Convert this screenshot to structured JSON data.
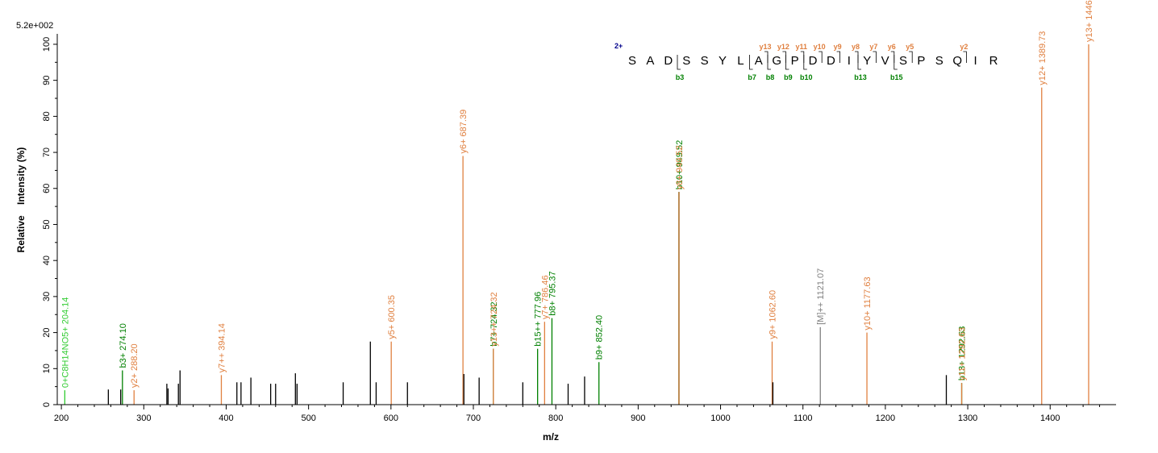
{
  "chart_data": {
    "type": "bar",
    "scale_label": "5.2e+002",
    "xlabel": "m/z",
    "ylabel": "Relative    Intensity (%)",
    "xlim": [
      195,
      1480
    ],
    "ylim": [
      0,
      102
    ],
    "x_ticks": [
      200,
      300,
      400,
      500,
      600,
      700,
      800,
      900,
      1000,
      1100,
      1200,
      1300,
      1400
    ],
    "y_ticks": [
      0,
      10,
      20,
      30,
      40,
      50,
      60,
      70,
      80,
      90,
      100
    ],
    "colors": {
      "y_ion": "#E08040",
      "b_ion": "#008000",
      "immonium": "#33CC33",
      "precursor": "#808080",
      "unassigned": "#000000",
      "sequence_charge": "#00008B"
    },
    "peaks": [
      {
        "mz": 204.14,
        "intensity": 4.0,
        "kind": "immonium",
        "label": "0+C8H14NO5+ 204.14"
      },
      {
        "mz": 257.0,
        "intensity": 4.2,
        "kind": "unassigned",
        "label": ""
      },
      {
        "mz": 272.0,
        "intensity": 4.2,
        "kind": "unassigned",
        "label": ""
      },
      {
        "mz": 274.1,
        "intensity": 9.5,
        "kind": "b_ion",
        "label": "b3+ 274.10"
      },
      {
        "mz": 288.2,
        "intensity": 4.0,
        "kind": "y_ion",
        "label": "y2+ 288.20"
      },
      {
        "mz": 328.0,
        "intensity": 5.8,
        "kind": "unassigned",
        "label": ""
      },
      {
        "mz": 329.5,
        "intensity": 4.5,
        "kind": "unassigned",
        "label": ""
      },
      {
        "mz": 342.0,
        "intensity": 5.8,
        "kind": "unassigned",
        "label": ""
      },
      {
        "mz": 344.0,
        "intensity": 9.5,
        "kind": "unassigned",
        "label": ""
      },
      {
        "mz": 394.14,
        "intensity": 8.2,
        "kind": "y_ion",
        "label": "y7++ 394.14"
      },
      {
        "mz": 413.0,
        "intensity": 6.2,
        "kind": "unassigned",
        "label": ""
      },
      {
        "mz": 418.0,
        "intensity": 6.2,
        "kind": "unassigned",
        "label": ""
      },
      {
        "mz": 430.0,
        "intensity": 7.5,
        "kind": "unassigned",
        "label": ""
      },
      {
        "mz": 454.0,
        "intensity": 5.8,
        "kind": "unassigned",
        "label": ""
      },
      {
        "mz": 460.0,
        "intensity": 5.8,
        "kind": "unassigned",
        "label": ""
      },
      {
        "mz": 484.0,
        "intensity": 8.7,
        "kind": "unassigned",
        "label": ""
      },
      {
        "mz": 486.0,
        "intensity": 5.8,
        "kind": "unassigned",
        "label": ""
      },
      {
        "mz": 542.0,
        "intensity": 6.2,
        "kind": "unassigned",
        "label": ""
      },
      {
        "mz": 575.0,
        "intensity": 17.5,
        "kind": "unassigned",
        "label": ""
      },
      {
        "mz": 582.0,
        "intensity": 6.2,
        "kind": "unassigned",
        "label": ""
      },
      {
        "mz": 600.35,
        "intensity": 17.5,
        "kind": "y_ion",
        "label": "y5+ 600.35"
      },
      {
        "mz": 620.0,
        "intensity": 6.2,
        "kind": "unassigned",
        "label": ""
      },
      {
        "mz": 687.39,
        "intensity": 69.0,
        "kind": "y_ion",
        "label": "y6+ 687.39"
      },
      {
        "mz": 688.5,
        "intensity": 8.5,
        "kind": "unassigned",
        "label": ""
      },
      {
        "mz": 707.0,
        "intensity": 7.5,
        "kind": "unassigned",
        "label": ""
      },
      {
        "mz": 724.32,
        "intensity": 15.5,
        "kind": "b_ion",
        "label": "b7+ 724.32"
      },
      {
        "mz": 724.32,
        "intensity": 15.5,
        "kind": "y_ion",
        "label": "y13++ 724.32"
      },
      {
        "mz": 760.0,
        "intensity": 6.2,
        "kind": "unassigned",
        "label": ""
      },
      {
        "mz": 777.96,
        "intensity": 15.5,
        "kind": "b_ion",
        "label": "b15++ 777.96"
      },
      {
        "mz": 786.46,
        "intensity": 23.0,
        "kind": "y_ion",
        "label": "y7+ 786.46"
      },
      {
        "mz": 795.37,
        "intensity": 24.0,
        "kind": "b_ion",
        "label": "b8+ 795.37"
      },
      {
        "mz": 815.0,
        "intensity": 5.8,
        "kind": "unassigned",
        "label": ""
      },
      {
        "mz": 835.0,
        "intensity": 7.8,
        "kind": "unassigned",
        "label": ""
      },
      {
        "mz": 852.4,
        "intensity": 11.8,
        "kind": "b_ion",
        "label": "b9+ 852.40"
      },
      {
        "mz": 949.52,
        "intensity": 59.0,
        "kind": "unassigned",
        "label": ""
      },
      {
        "mz": 949.52,
        "intensity": 59.0,
        "kind": "b_ion",
        "label": "b10+ 949.52"
      },
      {
        "mz": 949.52,
        "intensity": 59.0,
        "kind": "y_ion",
        "label": "y8+ 949.52"
      },
      {
        "mz": 1062.6,
        "intensity": 17.5,
        "kind": "y_ion",
        "label": "y9+ 1062.60"
      },
      {
        "mz": 1063.5,
        "intensity": 6.2,
        "kind": "unassigned",
        "label": ""
      },
      {
        "mz": 1121.07,
        "intensity": 21.5,
        "kind": "precursor",
        "label": "[M]++ 1121.07"
      },
      {
        "mz": 1177.63,
        "intensity": 20.0,
        "kind": "y_ion",
        "label": "y10+ 1177.63"
      },
      {
        "mz": 1274.0,
        "intensity": 8.2,
        "kind": "unassigned",
        "label": ""
      },
      {
        "mz": 1292.63,
        "intensity": 6.0,
        "kind": "b_ion",
        "label": "b13+ 1292.63"
      },
      {
        "mz": 1292.63,
        "intensity": 6.0,
        "kind": "y_ion",
        "label": "y11+ 1292.63"
      },
      {
        "mz": 1389.73,
        "intensity": 88.0,
        "kind": "y_ion",
        "label": "y12+ 1389.73"
      },
      {
        "mz": 1446.74,
        "intensity": 100.0,
        "kind": "y_ion",
        "label": "y13+ 1446.74"
      }
    ],
    "sequence": {
      "charge": "2+",
      "residues": [
        "S",
        "A",
        "D",
        "S",
        "S",
        "Y",
        "L",
        "A",
        "G",
        "P",
        "D",
        "D",
        "I",
        "Y",
        "V",
        "S",
        "P",
        "S",
        "Q",
        "I",
        "R"
      ],
      "b_ions": [
        {
          "after": 3,
          "label": "b3"
        },
        {
          "after": 7,
          "label": "b7"
        },
        {
          "after": 8,
          "label": "b8"
        },
        {
          "after": 9,
          "label": "b9"
        },
        {
          "after": 10,
          "label": "b10"
        },
        {
          "after": 13,
          "label": "b13"
        },
        {
          "after": 15,
          "label": "b15"
        }
      ],
      "y_ions": [
        {
          "after": 8,
          "label": "y13"
        },
        {
          "after": 9,
          "label": "y12"
        },
        {
          "after": 10,
          "label": "y11"
        },
        {
          "after": 11,
          "label": "y10"
        },
        {
          "after": 12,
          "label": "y9"
        },
        {
          "after": 13,
          "label": "y8"
        },
        {
          "after": 14,
          "label": "y7"
        },
        {
          "after": 15,
          "label": "y6"
        },
        {
          "after": 16,
          "label": "y5"
        },
        {
          "after": 19,
          "label": "y2"
        }
      ]
    }
  }
}
